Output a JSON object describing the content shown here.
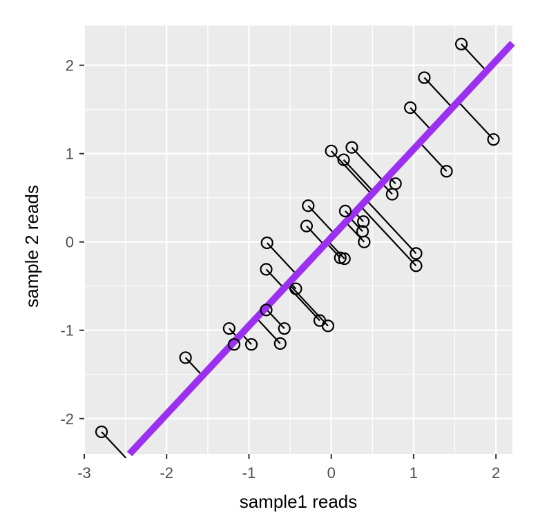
{
  "chart_data": {
    "type": "scatter",
    "title": "",
    "xlabel": "sample1 reads",
    "ylabel": "sample 2 reads",
    "xlim": [
      -3,
      2.2
    ],
    "ylim": [
      -2.4,
      2.45
    ],
    "xticks": [
      -3,
      -2,
      -1,
      0,
      1,
      2
    ],
    "yticks": [
      -2,
      -1,
      0,
      1,
      2
    ],
    "grid": true,
    "legend": "none",
    "colors": {
      "panel": "#ebebeb",
      "grid": "#ffffff",
      "fit_line": "#9b30f0",
      "points": "#000000",
      "segments": "#000000",
      "axis_text": "#4d4d4d"
    },
    "fit_line": {
      "slope": 1,
      "intercept": 0.05
    },
    "points": [
      {
        "x": -2.79,
        "y": -2.15
      },
      {
        "x": -1.77,
        "y": -1.31
      },
      {
        "x": -1.24,
        "y": -0.98
      },
      {
        "x": -1.18,
        "y": -1.16
      },
      {
        "x": -0.97,
        "y": -1.16
      },
      {
        "x": -0.79,
        "y": -0.77
      },
      {
        "x": -0.79,
        "y": -0.31
      },
      {
        "x": -0.78,
        "y": -0.01
      },
      {
        "x": -0.62,
        "y": -1.15
      },
      {
        "x": -0.57,
        "y": -0.98
      },
      {
        "x": -0.43,
        "y": -0.53
      },
      {
        "x": -0.3,
        "y": 0.18
      },
      {
        "x": -0.28,
        "y": 0.41
      },
      {
        "x": -0.14,
        "y": -0.89
      },
      {
        "x": -0.04,
        "y": -0.95
      },
      {
        "x": 0.0,
        "y": 1.03
      },
      {
        "x": 0.11,
        "y": -0.18
      },
      {
        "x": 0.15,
        "y": 0.93
      },
      {
        "x": 0.16,
        "y": -0.19
      },
      {
        "x": 0.17,
        "y": 0.35
      },
      {
        "x": 0.25,
        "y": 1.07
      },
      {
        "x": 0.38,
        "y": 0.12
      },
      {
        "x": 0.39,
        "y": 0.23
      },
      {
        "x": 0.4,
        "y": 0.0
      },
      {
        "x": 0.74,
        "y": 0.54
      },
      {
        "x": 0.78,
        "y": 0.66
      },
      {
        "x": 0.96,
        "y": 1.52
      },
      {
        "x": 1.03,
        "y": -0.13
      },
      {
        "x": 1.03,
        "y": -0.27
      },
      {
        "x": 1.13,
        "y": 1.86
      },
      {
        "x": 1.4,
        "y": 0.8
      },
      {
        "x": 1.58,
        "y": 2.24
      },
      {
        "x": 1.97,
        "y": 1.16
      }
    ]
  }
}
